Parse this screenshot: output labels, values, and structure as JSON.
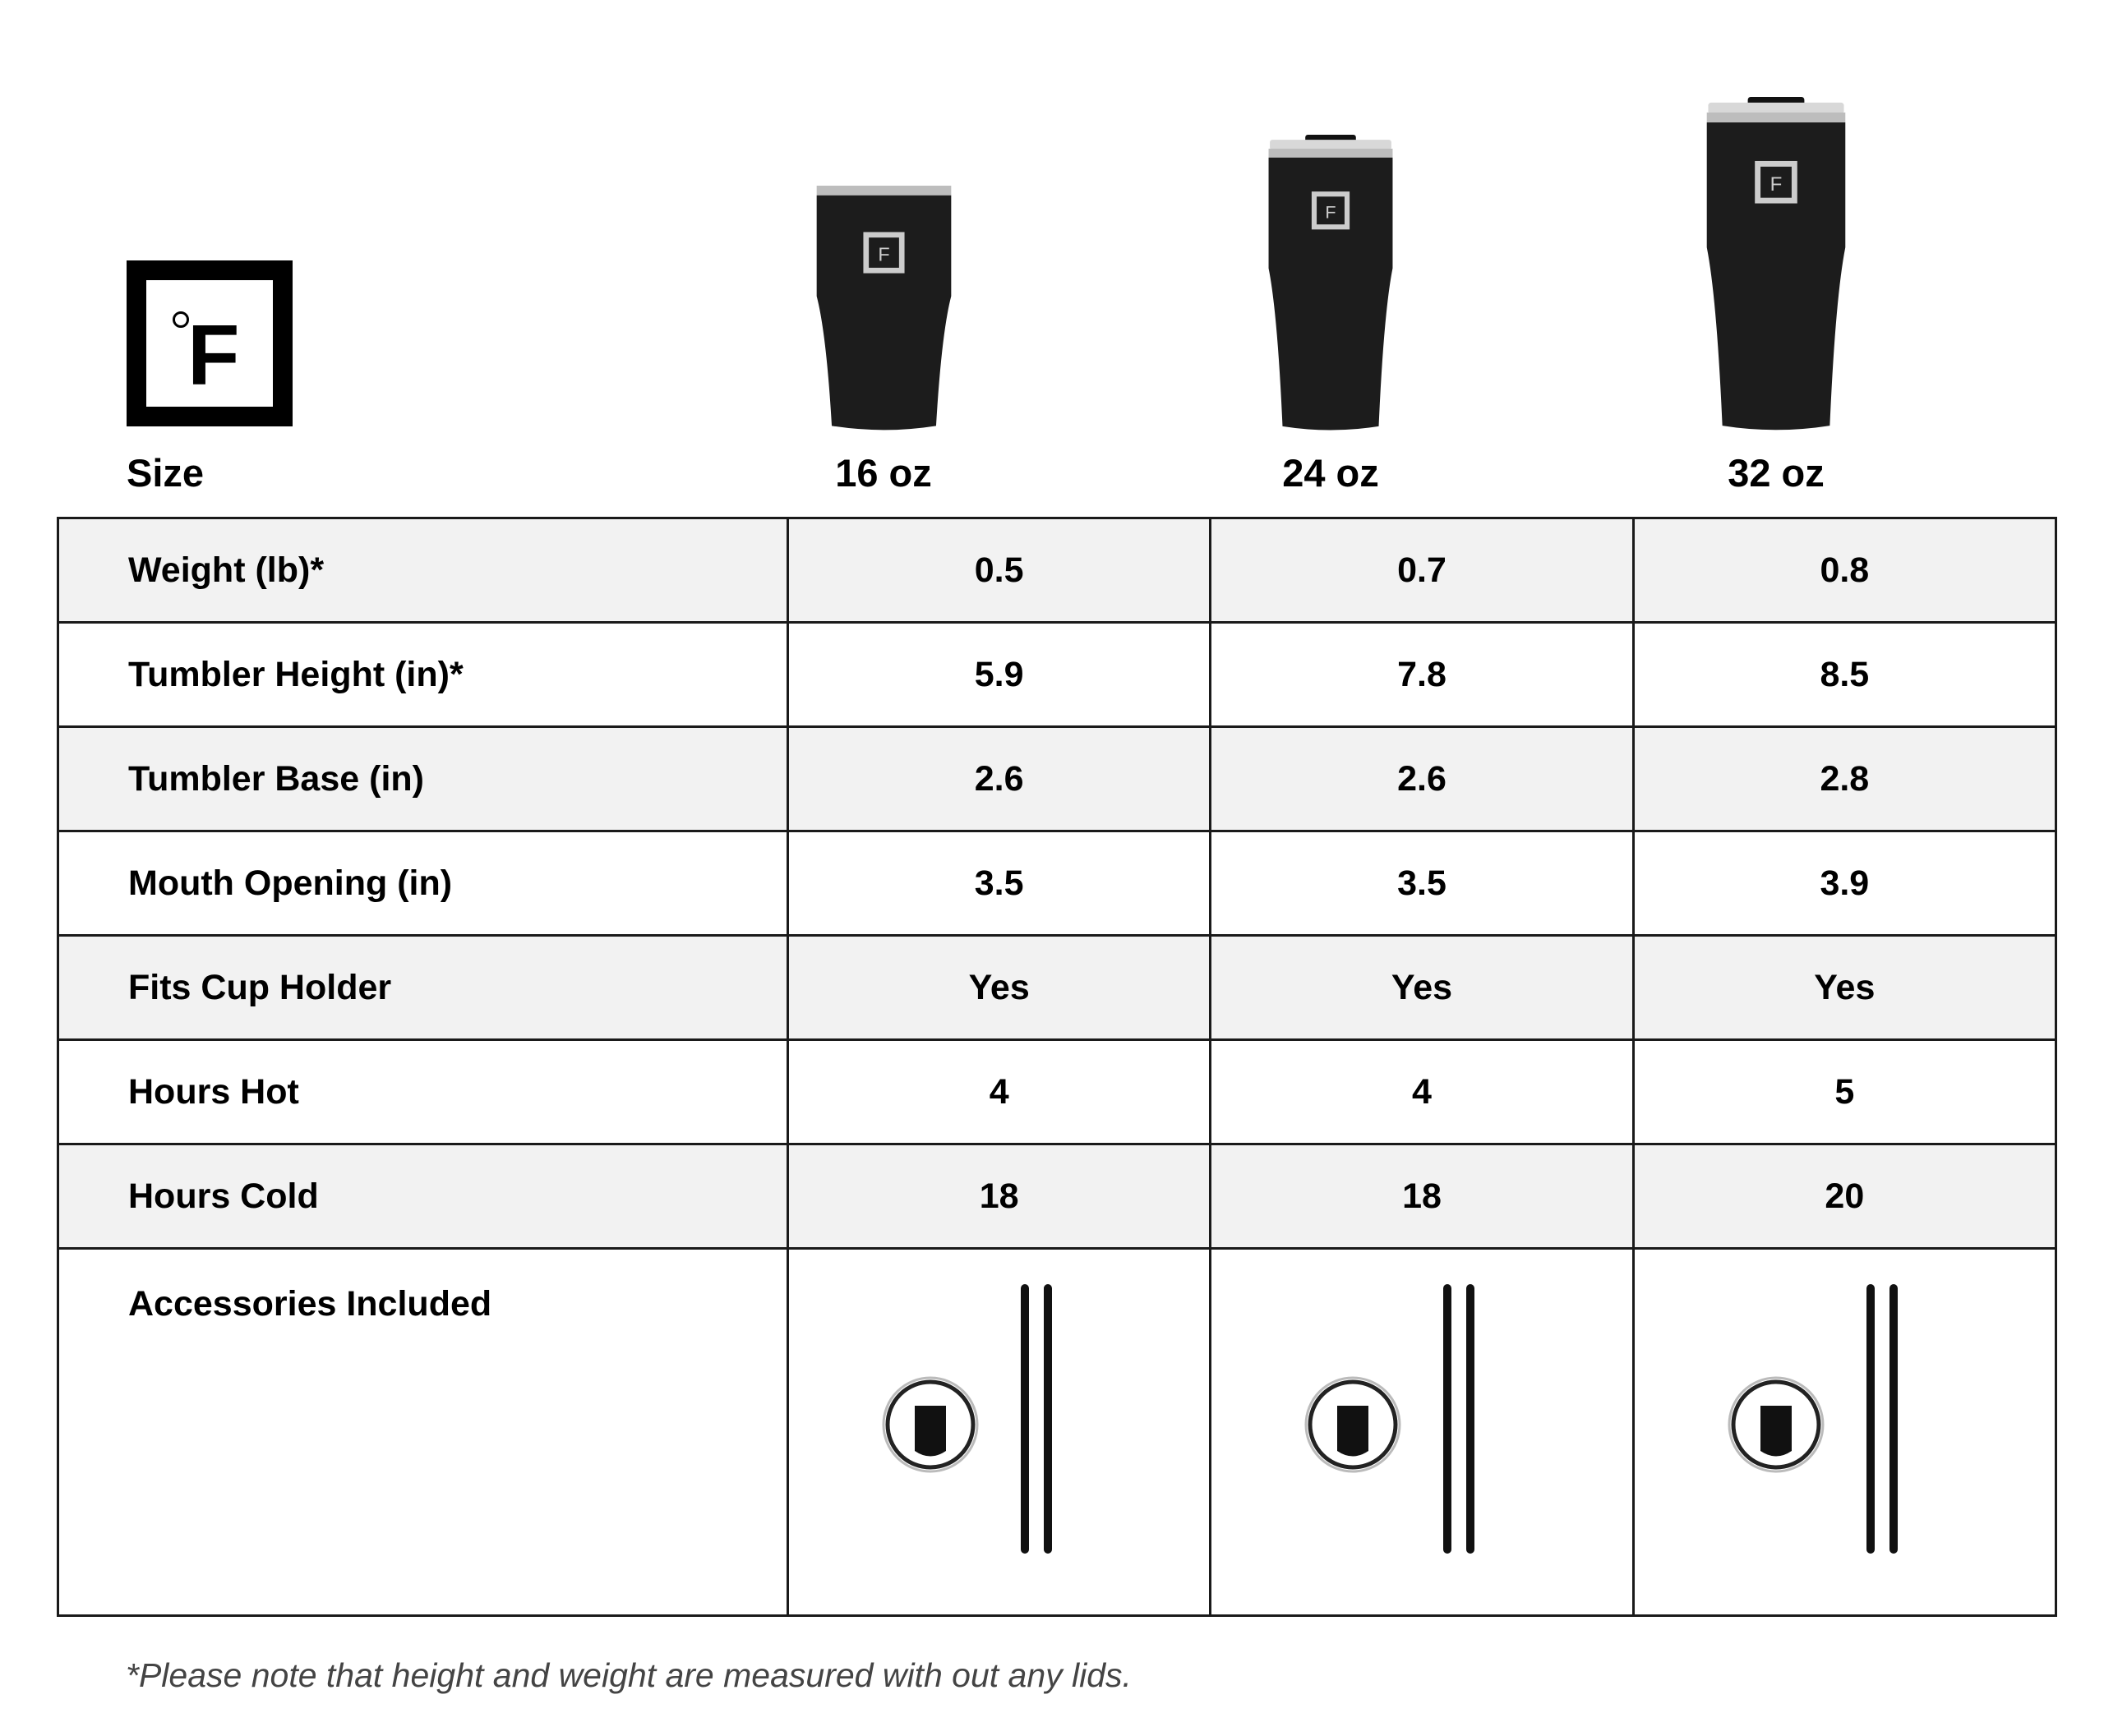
{
  "brand": {
    "logo_text": "°F"
  },
  "header": {
    "size_label": "Size"
  },
  "sizes": [
    "16 oz",
    "24 oz",
    "32 oz"
  ],
  "rows": [
    {
      "label": "Weight (lb)*",
      "values": [
        "0.5",
        "0.7",
        "0.8"
      ]
    },
    {
      "label": "Tumbler Height (in)*",
      "values": [
        "5.9",
        "7.8",
        "8.5"
      ]
    },
    {
      "label": "Tumbler Base (in)",
      "values": [
        "2.6",
        "2.6",
        "2.8"
      ]
    },
    {
      "label": "Mouth Opening (in)",
      "values": [
        "3.5",
        "3.5",
        "3.9"
      ]
    },
    {
      "label": "Fits Cup Holder",
      "values": [
        "Yes",
        "Yes",
        "Yes"
      ]
    },
    {
      "label": "Hours Hot",
      "values": [
        "4",
        "4",
        "5"
      ]
    },
    {
      "label": "Hours Cold",
      "values": [
        "18",
        "18",
        "20"
      ]
    }
  ],
  "accessories": {
    "label": "Accessories Included",
    "items": [
      "lid-icon",
      "straw-icon",
      "straw-icon"
    ]
  },
  "footnote": "*Please note that height and weight are measured with out any lids.",
  "colors": {
    "row_alt": "#f2f2f2",
    "border": "#1a1a1a",
    "tumbler": "#1c1c1c"
  }
}
